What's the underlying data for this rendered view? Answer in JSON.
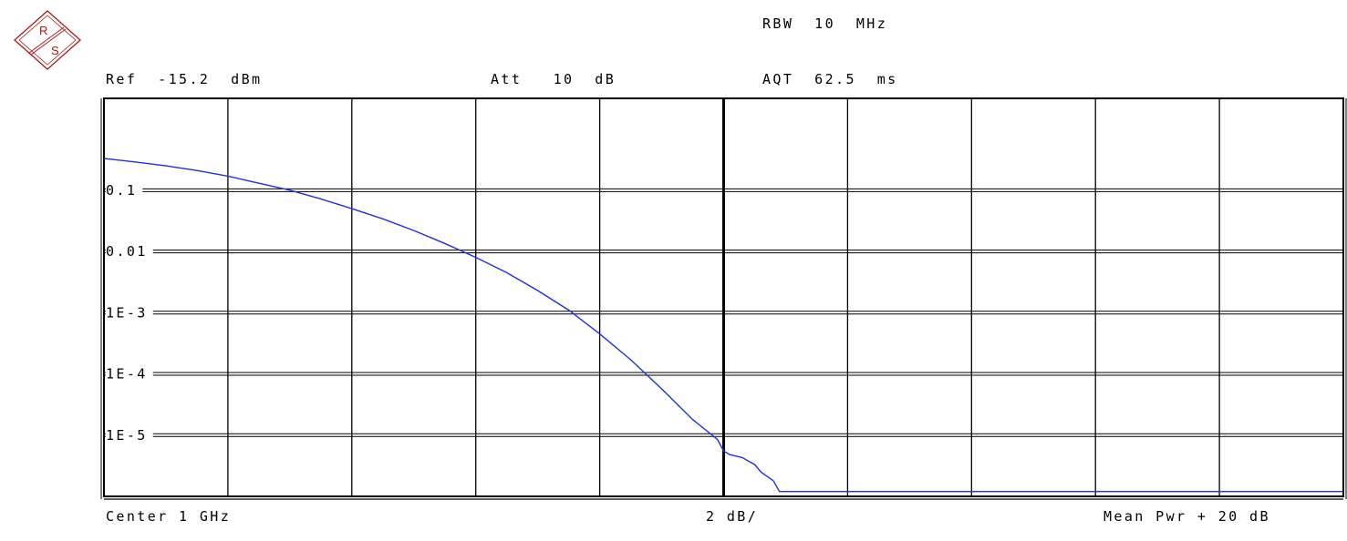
{
  "logo": {
    "line1": "R",
    "line2": "S"
  },
  "header": {
    "rbw": "RBW  10  MHz",
    "ref": "Ref  -15.2  dBm",
    "att": "Att   10  dB",
    "aqt": "AQT  62.5  ms"
  },
  "footer": {
    "center": "Center 1 GHz",
    "scale": "2 dB/",
    "mean": "Mean Pwr + 20 dB"
  },
  "colors": {
    "trace": "#2030e0",
    "grid": "#000000",
    "logo": "#b01818"
  },
  "chart_data": {
    "type": "line",
    "title": "",
    "xlabel": "",
    "ylabel": "",
    "xlim": [
      0,
      20
    ],
    "ylim_log10": [
      -6,
      0.5
    ],
    "y_scale": "log",
    "y_tick_labels": [
      "0.1",
      "0.01",
      "1E-3",
      "1E-4",
      "1E-5"
    ],
    "y_tick_values": [
      0.1,
      0.01,
      0.001,
      0.0001,
      1e-05
    ],
    "grid": true,
    "series": [
      {
        "x": [
          0,
          0.5,
          1,
          1.5,
          2,
          2.5,
          3,
          3.5,
          4,
          4.5,
          5,
          5.5,
          6,
          6.5,
          7,
          7.5,
          8,
          8.5,
          9,
          9.5,
          9.9,
          10,
          10.1,
          10.3,
          10.5,
          10.6,
          10.8,
          10.9,
          11,
          12,
          14,
          16,
          18,
          20
        ],
        "y": [
          0.33,
          0.29,
          0.25,
          0.21,
          0.17,
          0.13,
          0.1,
          0.072,
          0.05,
          0.034,
          0.022,
          0.0135,
          0.008,
          0.0045,
          0.0023,
          0.0011,
          0.00045,
          0.00017,
          5.7e-05,
          1.8e-05,
          8.5e-06,
          5.5e-06,
          4.8e-06,
          4.3e-06,
          3.3e-06,
          2.5e-06,
          1.8e-06,
          1.2e-06,
          1.2e-06,
          1.2e-06,
          1.2e-06,
          1.2e-06,
          1.2e-06,
          1.2e-06
        ]
      }
    ]
  }
}
